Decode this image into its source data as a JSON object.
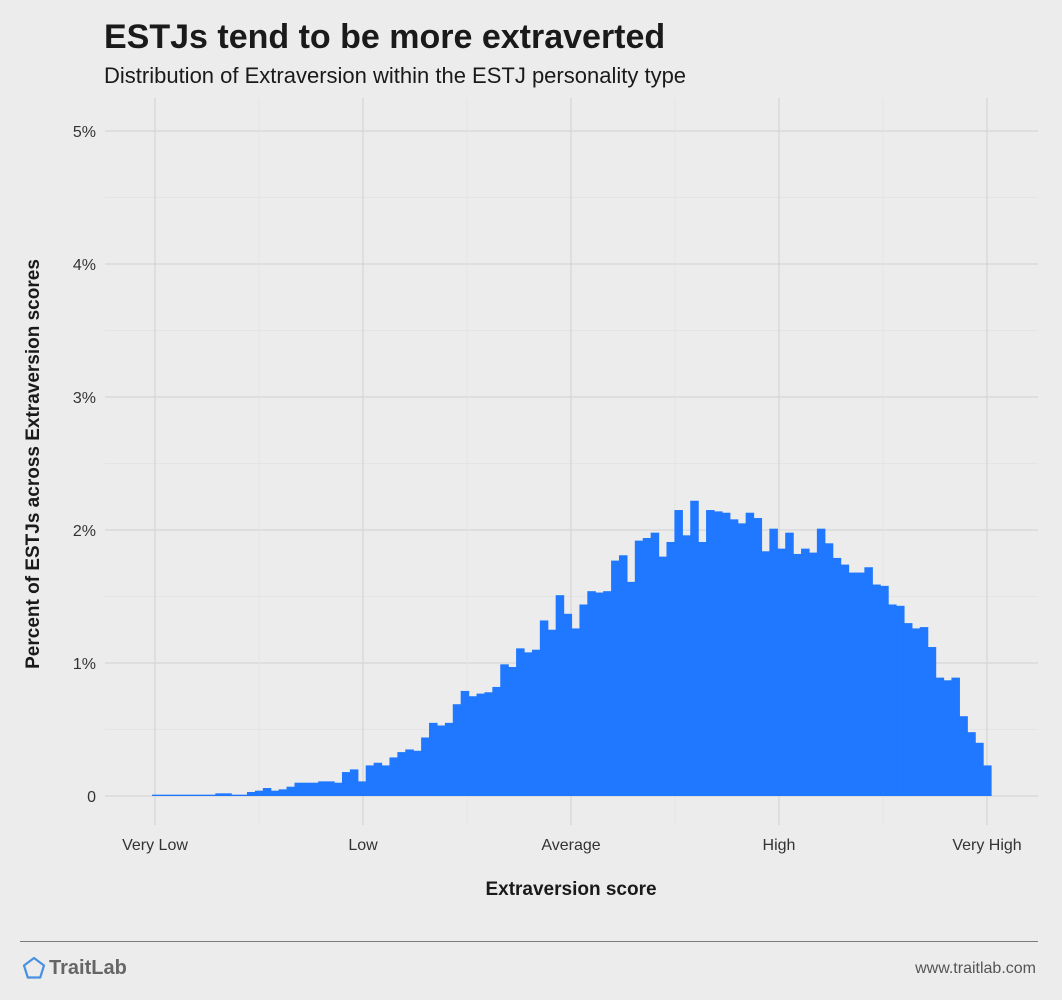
{
  "header": {
    "title": "ESTJs tend to be more extraverted",
    "subtitle": "Distribution of Extraversion within the ESTJ personality type"
  },
  "footer": {
    "brand": "TraitLab",
    "brand_icon": "pentagon-icon",
    "url": "www.traitlab.com"
  },
  "colors": {
    "bar": "#1f78ff",
    "background": "#ececec",
    "grid_major": "#d6d6d6",
    "grid_minor": "#e4e4e4",
    "brand_icon": "#4a90e2"
  },
  "chart_data": {
    "type": "bar",
    "title": "ESTJs tend to be more extraverted",
    "subtitle": "Distribution of Extraversion within the ESTJ personality type",
    "xlabel": "Extraversion score",
    "ylabel": "Percent of ESTJs across Extraversion scores",
    "x_ticks": [
      "Very Low",
      "Low",
      "Average",
      "High",
      "Very High"
    ],
    "y_ticks": [
      "0",
      "1%",
      "2%",
      "3%",
      "4%",
      "5%"
    ],
    "ylim": [
      0,
      5.2
    ],
    "grid": true,
    "legend": "none",
    "series": [
      {
        "values": [
          0.01,
          0.01,
          0.01,
          0.01,
          0.01,
          0.01,
          0.01,
          0.01,
          0.02,
          0.02,
          0.01,
          0.01,
          0.03,
          0.04,
          0.06,
          0.04,
          0.05,
          0.07,
          0.1,
          0.1,
          0.1,
          0.11,
          0.11,
          0.1,
          0.18,
          0.2,
          0.11,
          0.23,
          0.25,
          0.23,
          0.29,
          0.33,
          0.35,
          0.34,
          0.44,
          0.55,
          0.53,
          0.55,
          0.69,
          0.79,
          0.75,
          0.77,
          0.78,
          0.82,
          0.99,
          0.97,
          1.11,
          1.08,
          1.1,
          1.32,
          1.25,
          1.51,
          1.37,
          1.26,
          1.44,
          1.54,
          1.53,
          1.54,
          1.77,
          1.81,
          1.61,
          1.92,
          1.94,
          1.98,
          1.8,
          1.91,
          2.15,
          1.96,
          2.22,
          1.91,
          2.15,
          2.14,
          2.13,
          2.08,
          2.05,
          2.13,
          2.09,
          1.84,
          2.01,
          1.86,
          1.98,
          1.82,
          1.86,
          1.83,
          2.01,
          1.9,
          1.79,
          1.74,
          1.68,
          1.68,
          1.72,
          1.59,
          1.58,
          1.44,
          1.43,
          1.3,
          1.26,
          1.27,
          1.12,
          0.89,
          0.87,
          0.89,
          0.6,
          0.48,
          0.4,
          0.23
        ]
      }
    ]
  }
}
